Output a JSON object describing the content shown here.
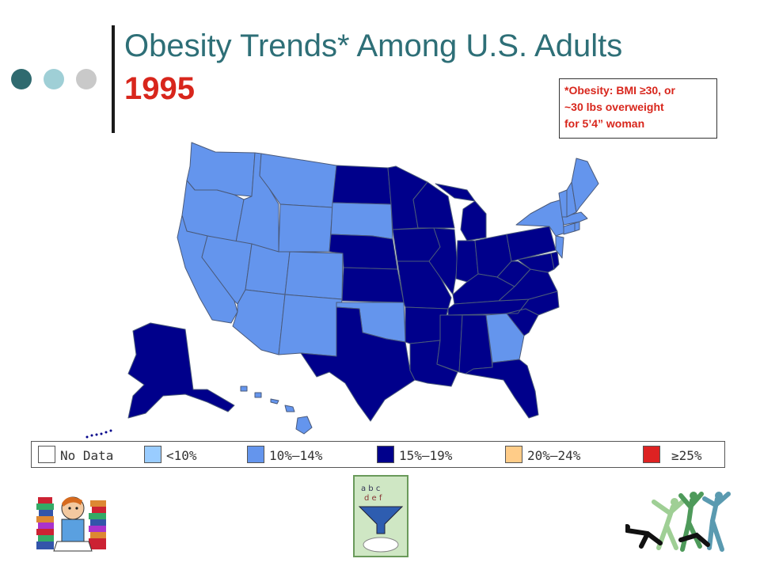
{
  "title": {
    "main": "Obesity Trends* Among U.S. Adults",
    "year": "1995"
  },
  "note": {
    "lines": [
      "*Obesity: BMI ≥30, or",
      "~30 lbs overweight",
      "for 5’4” woman"
    ]
  },
  "decor_dots": {
    "colors": [
      "#2f6a6f",
      "#9fcfd6",
      "#c9c9c9"
    ]
  },
  "legend": {
    "items": [
      {
        "label": "No Data",
        "color": "#ffffff"
      },
      {
        "label": "<10%",
        "color": "#99ccff"
      },
      {
        "label": "10%–14%",
        "color": "#6495ed"
      },
      {
        "label": "15%–19%",
        "color": "#00008b"
      },
      {
        "label": "20%–24%",
        "color": "#ffcc88"
      },
      {
        "label": "≥25%",
        "color": "#dd2222"
      }
    ]
  },
  "map": {
    "categories": {
      "10-14": [
        "WA",
        "OR",
        "CA",
        "ID",
        "MT",
        "WY",
        "NV",
        "UT",
        "CO",
        "AZ",
        "NM",
        "SD",
        "OK",
        "GA",
        "NY",
        "VT",
        "NH",
        "ME",
        "MA",
        "CT",
        "RI",
        "NJ",
        "HI"
      ],
      "15-19": [
        "ND",
        "MN",
        "WI",
        "MI",
        "NE",
        "KS",
        "IA",
        "MO",
        "IL",
        "IN",
        "OH",
        "KY",
        "TN",
        "AR",
        "LA",
        "TX",
        "MS",
        "AL",
        "FL",
        "SC",
        "NC",
        "VA",
        "WV",
        "PA",
        "MD",
        "DE",
        "AK"
      ]
    }
  },
  "clipart": {
    "left": "student-reading-icon",
    "center": "food-funnel-icon",
    "right": "dancers-silhouette-icon"
  }
}
